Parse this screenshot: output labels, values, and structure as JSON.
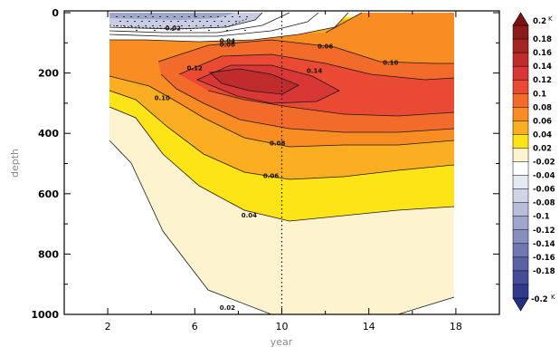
{
  "chart_data": {
    "type": "heatmap",
    "title": "",
    "xlabel": "year",
    "ylabel": "depth",
    "xlim": [
      0,
      20
    ],
    "ylim": [
      1000,
      0
    ],
    "x_ticks": [
      "2",
      "6",
      "10",
      "14",
      "18"
    ],
    "x_tick_values": [
      2,
      6,
      10,
      14,
      18
    ],
    "y_ticks": [
      "0",
      "200",
      "400",
      "600",
      "800",
      "1000"
    ],
    "y_tick_values": [
      0,
      200,
      400,
      600,
      800,
      1000
    ],
    "marker_line_x": 10,
    "contour_labels": [
      {
        "text": "0.02",
        "x": 5.0,
        "y": 58
      },
      {
        "text": "0.04",
        "x": 7.5,
        "y": 100
      },
      {
        "text": "0.06",
        "x": 7.5,
        "y": 112
      },
      {
        "text": "0.06",
        "x": 12.0,
        "y": 118
      },
      {
        "text": "0.10",
        "x": 15.0,
        "y": 172
      },
      {
        "text": "0.12",
        "x": 6.0,
        "y": 190
      },
      {
        "text": "0.14",
        "x": 11.5,
        "y": 200
      },
      {
        "text": "0.10",
        "x": 4.5,
        "y": 290
      },
      {
        "text": "0.08",
        "x": 9.8,
        "y": 440
      },
      {
        "text": "0.06",
        "x": 9.5,
        "y": 548
      },
      {
        "text": "0.04",
        "x": 8.5,
        "y": 678
      },
      {
        "text": "0.02",
        "x": 7.5,
        "y": 985
      }
    ],
    "colorbar": {
      "unit": "K",
      "top_label": "0.2",
      "bottom_label": "-0.2",
      "labels": [
        "0.18",
        "0.16",
        "0.14",
        "0.12",
        "0.1",
        "0.08",
        "0.06",
        "0.04",
        "0.02",
        "-0.02",
        "-0.04",
        "-0.06",
        "-0.08",
        "-0.1",
        "-0.12",
        "-0.14",
        "-0.16",
        "-0.18"
      ],
      "colors": [
        "#8c1a1a",
        "#a52424",
        "#c02c2c",
        "#d93636",
        "#ea4a34",
        "#f36b2a",
        "#f98d24",
        "#fbae22",
        "#fde417",
        "#fdf3cf",
        "#ffffff",
        "#e6e8f2",
        "#d0d4e6",
        "#b8bed9",
        "#9fa6cc",
        "#878fbf",
        "#7078b2",
        "#5a62a5",
        "#454d98",
        "#323a8c"
      ]
    }
  }
}
